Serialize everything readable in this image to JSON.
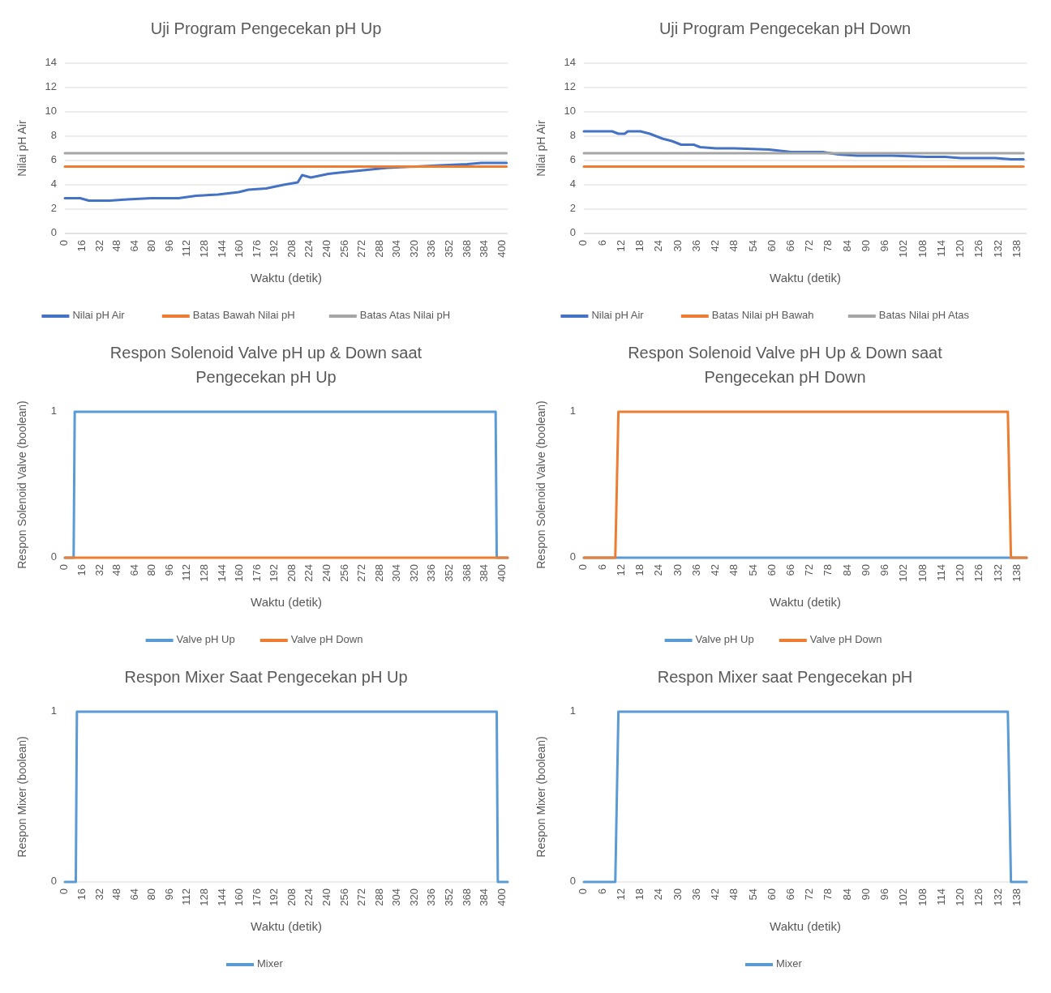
{
  "chart_data": [
    {
      "type": "line",
      "title": "Uji Program Pengecekan pH Up",
      "xlabel": "Waktu (detik)",
      "ylabel": "Nilai pH Air",
      "xlim": [
        0,
        405
      ],
      "xticks": [
        0,
        16,
        32,
        48,
        64,
        80,
        96,
        112,
        128,
        144,
        160,
        176,
        192,
        208,
        224,
        240,
        256,
        272,
        288,
        304,
        320,
        336,
        352,
        368,
        384,
        400
      ],
      "ylim": [
        0,
        14
      ],
      "yticks": [
        0,
        2,
        4,
        6,
        8,
        10,
        12,
        14
      ],
      "grid": "y",
      "legend": "bottom",
      "series": [
        {
          "name": "Nilai pH Air",
          "color": "#4472c4",
          "x": [
            0,
            14,
            22,
            41,
            57,
            79,
            104,
            120,
            140,
            159,
            168,
            184,
            200,
            213,
            217,
            225,
            241,
            251,
            273,
            295,
            321,
            343,
            368,
            381,
            404
          ],
          "values": [
            2.9,
            2.9,
            2.7,
            2.7,
            2.8,
            2.9,
            2.9,
            3.1,
            3.2,
            3.4,
            3.6,
            3.7,
            4.0,
            4.2,
            4.8,
            4.6,
            4.9,
            5.0,
            5.2,
            5.4,
            5.5,
            5.6,
            5.7,
            5.8,
            5.8
          ]
        },
        {
          "name": "Batas Bawah Nilai pH",
          "color": "#ed7d31",
          "x": [
            0,
            404
          ],
          "values": [
            5.5,
            5.5
          ]
        },
        {
          "name": "Batas Atas Nilai pH",
          "color": "#a5a5a5",
          "x": [
            0,
            404
          ],
          "values": [
            6.6,
            6.6
          ]
        }
      ]
    },
    {
      "type": "line",
      "title": "Uji Program Pengecekan pH Down",
      "xlabel": "Waktu (detik)",
      "ylabel": "Nilai pH Air",
      "xlim": [
        0,
        141
      ],
      "xticks": [
        0,
        6,
        12,
        18,
        24,
        30,
        36,
        42,
        48,
        54,
        60,
        66,
        72,
        78,
        84,
        90,
        96,
        102,
        108,
        114,
        120,
        126,
        132,
        138
      ],
      "ylim": [
        0,
        14
      ],
      "yticks": [
        0,
        2,
        4,
        6,
        8,
        10,
        12,
        14
      ],
      "grid": "y",
      "legend": "bottom",
      "series": [
        {
          "name": "Nilai pH Air",
          "color": "#4472c4",
          "x": [
            0,
            9,
            11,
            13,
            14,
            18,
            21,
            25,
            28,
            31,
            35,
            37,
            42,
            48,
            59,
            66,
            76,
            81,
            87,
            98,
            109,
            115,
            120,
            131,
            136,
            140
          ],
          "values": [
            8.4,
            8.4,
            8.2,
            8.2,
            8.4,
            8.4,
            8.2,
            7.8,
            7.6,
            7.3,
            7.3,
            7.1,
            7.0,
            7.0,
            6.9,
            6.7,
            6.7,
            6.5,
            6.4,
            6.4,
            6.3,
            6.3,
            6.2,
            6.2,
            6.1,
            6.1
          ]
        },
        {
          "name": "Batas Nilai pH Bawah",
          "color": "#ed7d31",
          "x": [
            0,
            140
          ],
          "values": [
            5.5,
            5.5
          ]
        },
        {
          "name": "Batas Nilai pH Atas",
          "color": "#a5a5a5",
          "x": [
            0,
            140
          ],
          "values": [
            6.6,
            6.6
          ]
        }
      ]
    },
    {
      "type": "line",
      "title": "Respon Solenoid Valve pH up & Down saat Pengecekan pH Up",
      "xlabel": "Waktu (detik)",
      "ylabel": "Respon Solenoid Valve (boolean)",
      "xlim": [
        0,
        405
      ],
      "xticks": [
        0,
        16,
        32,
        48,
        64,
        80,
        96,
        112,
        128,
        144,
        160,
        176,
        192,
        208,
        224,
        240,
        256,
        272,
        288,
        304,
        320,
        336,
        352,
        368,
        384,
        400
      ],
      "ylim": [
        0,
        1
      ],
      "yticks": [
        0,
        1
      ],
      "legend": "bottom",
      "series": [
        {
          "name": "Valve pH Up",
          "color": "#5b9bd5",
          "x": [
            0,
            8,
            9,
            394,
            395,
            405
          ],
          "values": [
            0,
            0,
            1,
            1,
            0,
            0
          ]
        },
        {
          "name": "Valve pH Down",
          "color": "#ed7d31",
          "x": [
            0,
            405
          ],
          "values": [
            0,
            0
          ]
        }
      ]
    },
    {
      "type": "line",
      "title": "Respon Solenoid Valve pH Up & Down saat Pengecekan pH Down",
      "xlabel": "Waktu (detik)",
      "ylabel": "Respon Solenoid Valve (boolean)",
      "xlim": [
        0,
        141
      ],
      "xticks": [
        0,
        6,
        12,
        18,
        24,
        30,
        36,
        42,
        48,
        54,
        60,
        66,
        72,
        78,
        84,
        90,
        96,
        102,
        108,
        114,
        120,
        126,
        132,
        138
      ],
      "ylim": [
        0,
        1
      ],
      "yticks": [
        0,
        1
      ],
      "legend": "bottom",
      "series": [
        {
          "name": "Valve pH Up",
          "color": "#5b9bd5",
          "x": [
            0,
            141
          ],
          "values": [
            0,
            0
          ]
        },
        {
          "name": "Valve pH Down",
          "color": "#ed7d31",
          "x": [
            0,
            10,
            11,
            135,
            136,
            141
          ],
          "values": [
            0,
            0,
            1,
            1,
            0,
            0
          ]
        }
      ]
    },
    {
      "type": "line",
      "title": "Respon Mixer Saat Pengecekan pH Up",
      "xlabel": "Waktu (detik)",
      "ylabel": "Respon Mixer (boolean)",
      "xlim": [
        0,
        405
      ],
      "xticks": [
        0,
        16,
        32,
        48,
        64,
        80,
        96,
        112,
        128,
        144,
        160,
        176,
        192,
        208,
        224,
        240,
        256,
        272,
        288,
        304,
        320,
        336,
        352,
        368,
        384,
        400
      ],
      "ylim": [
        0,
        1
      ],
      "yticks": [
        0,
        1
      ],
      "legend": "bottom",
      "series": [
        {
          "name": "Mixer",
          "color": "#5b9bd5",
          "x": [
            0,
            10,
            11,
            395,
            396,
            405
          ],
          "values": [
            0,
            0,
            1,
            1,
            0,
            0
          ]
        }
      ]
    },
    {
      "type": "line",
      "title": "Respon Mixer saat Pengecekan pH",
      "xlabel": "Waktu (detik)",
      "ylabel": "Respon Mixer (boolean)",
      "xlim": [
        0,
        141
      ],
      "xticks": [
        0,
        6,
        12,
        18,
        24,
        30,
        36,
        42,
        48,
        54,
        60,
        66,
        72,
        78,
        84,
        90,
        96,
        102,
        108,
        114,
        120,
        126,
        132,
        138
      ],
      "ylim": [
        0,
        1
      ],
      "yticks": [
        0,
        1
      ],
      "legend": "bottom",
      "series": [
        {
          "name": "Mixer",
          "color": "#5b9bd5",
          "x": [
            0,
            10,
            11,
            135,
            136,
            141
          ],
          "values": [
            0,
            0,
            1,
            1,
            0,
            0
          ]
        }
      ]
    }
  ]
}
